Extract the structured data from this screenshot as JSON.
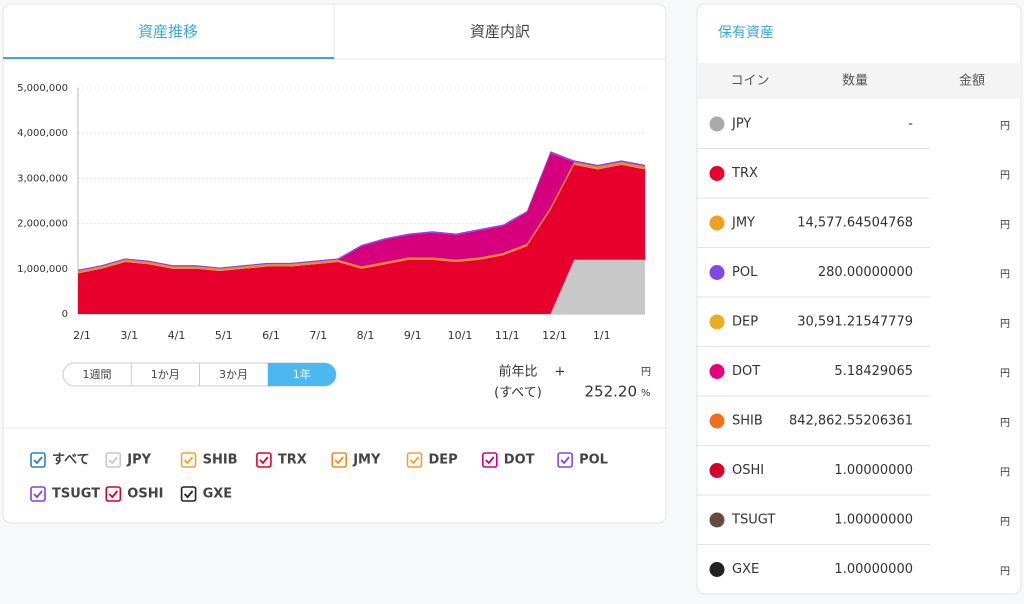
{
  "tabs": [
    "資産推移",
    "資産内訳"
  ],
  "active_tab": 0,
  "chart_data": {
    "type": "area",
    "categories": [
      "2/1",
      null,
      "3/1",
      null,
      "4/1",
      null,
      "5/1",
      null,
      "6/1",
      null,
      "7/1",
      null,
      "8/1",
      null,
      "9/1",
      null,
      "10/1",
      null,
      "11/1",
      null,
      "12/1",
      null,
      "1/1",
      null,
      null
    ],
    "ylim": [
      0,
      5000000
    ],
    "yticks": [
      0,
      {
        "value": 1000000,
        "label": "1,000,000"
      },
      {
        "value": 2000000,
        "label": "2,000,000"
      },
      {
        "value": 3000000,
        "label": "3,000,000"
      },
      {
        "value": 4000000,
        "label": "4,000,000"
      },
      {
        "value": 5000000,
        "label": "5,000,000"
      }
    ],
    "grid": true,
    "all_label": "すべて",
    "series": [
      {
        "name": "JPY",
        "color": "#c8c8c8",
        "values": [
          0,
          0,
          0,
          0,
          0,
          0,
          0,
          0,
          0,
          0,
          0,
          0,
          0,
          0,
          0,
          0,
          0,
          0,
          0,
          0,
          0,
          1200000,
          1200000,
          1200000,
          1200000
        ]
      },
      {
        "name": "SHIB",
        "color": "#f5a033",
        "values": [
          0,
          0,
          0,
          0,
          0,
          0,
          0,
          0,
          0,
          0,
          0,
          0,
          0,
          0,
          0,
          0,
          0,
          0,
          0,
          0,
          0,
          0,
          0,
          0,
          0
        ]
      },
      {
        "name": "TRX",
        "color": "#e8002c",
        "values": [
          900000,
          1000000,
          1150000,
          1100000,
          1000000,
          1000000,
          950000,
          1000000,
          1050000,
          1050000,
          1100000,
          1150000,
          1000000,
          1100000,
          1200000,
          1200000,
          1150000,
          1200000,
          1300000,
          1500000,
          2300000,
          2100000,
          2000000,
          2100000,
          2000000
        ]
      },
      {
        "name": "JMY",
        "color": "#f08c28",
        "values": [
          50000,
          50000,
          50000,
          50000,
          50000,
          50000,
          50000,
          50000,
          50000,
          50000,
          50000,
          50000,
          50000,
          50000,
          50000,
          50000,
          50000,
          50000,
          50000,
          50000,
          60000,
          60000,
          60000,
          60000,
          60000
        ]
      },
      {
        "name": "DEP",
        "color": "#f5a033",
        "values": [
          0,
          0,
          0,
          0,
          0,
          0,
          0,
          0,
          0,
          0,
          0,
          0,
          0,
          0,
          0,
          0,
          0,
          0,
          0,
          0,
          0,
          0,
          0,
          0,
          0
        ]
      },
      {
        "name": "DOT",
        "color": "#d6007e",
        "values": [
          0,
          0,
          0,
          0,
          0,
          0,
          0,
          0,
          0,
          0,
          0,
          0,
          450000,
          500000,
          500000,
          550000,
          550000,
          600000,
          600000,
          700000,
          1200000,
          0,
          0,
          0,
          0
        ]
      },
      {
        "name": "POL",
        "color": "#8247e5",
        "values": [
          30000,
          30000,
          30000,
          30000,
          30000,
          30000,
          30000,
          30000,
          30000,
          30000,
          30000,
          30000,
          30000,
          30000,
          30000,
          30000,
          30000,
          30000,
          30000,
          30000,
          40000,
          40000,
          40000,
          40000,
          40000
        ]
      },
      {
        "name": "TSUGT",
        "color": "#8a3ee0",
        "values": [
          0,
          0,
          0,
          0,
          0,
          0,
          0,
          0,
          0,
          0,
          0,
          0,
          0,
          0,
          0,
          0,
          0,
          0,
          0,
          0,
          0,
          0,
          0,
          0,
          0
        ]
      },
      {
        "name": "OSHI",
        "color": "#d4002a",
        "values": [
          0,
          0,
          0,
          0,
          0,
          0,
          0,
          0,
          0,
          0,
          0,
          0,
          0,
          0,
          0,
          0,
          0,
          0,
          0,
          0,
          0,
          0,
          0,
          0,
          0
        ]
      },
      {
        "name": "GXE",
        "color": "#222222",
        "values": [
          0,
          0,
          0,
          0,
          0,
          0,
          0,
          0,
          0,
          0,
          0,
          0,
          0,
          0,
          0,
          0,
          0,
          0,
          0,
          0,
          0,
          0,
          0,
          0,
          0
        ]
      }
    ]
  },
  "ranges": [
    "1週間",
    "1か月",
    "3か月",
    "1年"
  ],
  "active_range": 3,
  "summary": {
    "label": "前年比",
    "sub": "(すべて)",
    "sign": "+",
    "yen": "円",
    "value": "252.20",
    "percent": "%"
  },
  "holdings": {
    "title": "保有資産",
    "headers": [
      "コイン",
      "数量",
      "金額"
    ],
    "rows": [
      {
        "coin": "JPY",
        "qty": "-",
        "unit": "円",
        "icon_color": "#aaaaaa"
      },
      {
        "coin": "TRX",
        "unit": "円",
        "icon_color": "#e8002c"
      },
      {
        "coin": "JMY",
        "qty": "14,577.64504768",
        "unit": "円",
        "icon_color": "#f0a020"
      },
      {
        "coin": "POL",
        "qty": "280.00000000",
        "unit": "円",
        "icon_color": "#8247e5"
      },
      {
        "coin": "DEP",
        "qty": "30,591.21547779",
        "unit": "円",
        "icon_color": "#e8b020"
      },
      {
        "coin": "DOT",
        "qty": "5.18429065",
        "unit": "円",
        "icon_color": "#e6007a"
      },
      {
        "coin": "SHIB",
        "qty": "842,862.55206361",
        "unit": "円",
        "icon_color": "#f07020"
      },
      {
        "coin": "OSHI",
        "qty": "1.00000000",
        "unit": "円",
        "icon_color": "#d4002a"
      },
      {
        "coin": "TSUGT",
        "qty": "1.00000000",
        "unit": "円",
        "icon_color": "#6a4a3a"
      },
      {
        "coin": "GXE",
        "qty": "1.00000000",
        "unit": "円",
        "icon_color": "#222222"
      }
    ]
  }
}
